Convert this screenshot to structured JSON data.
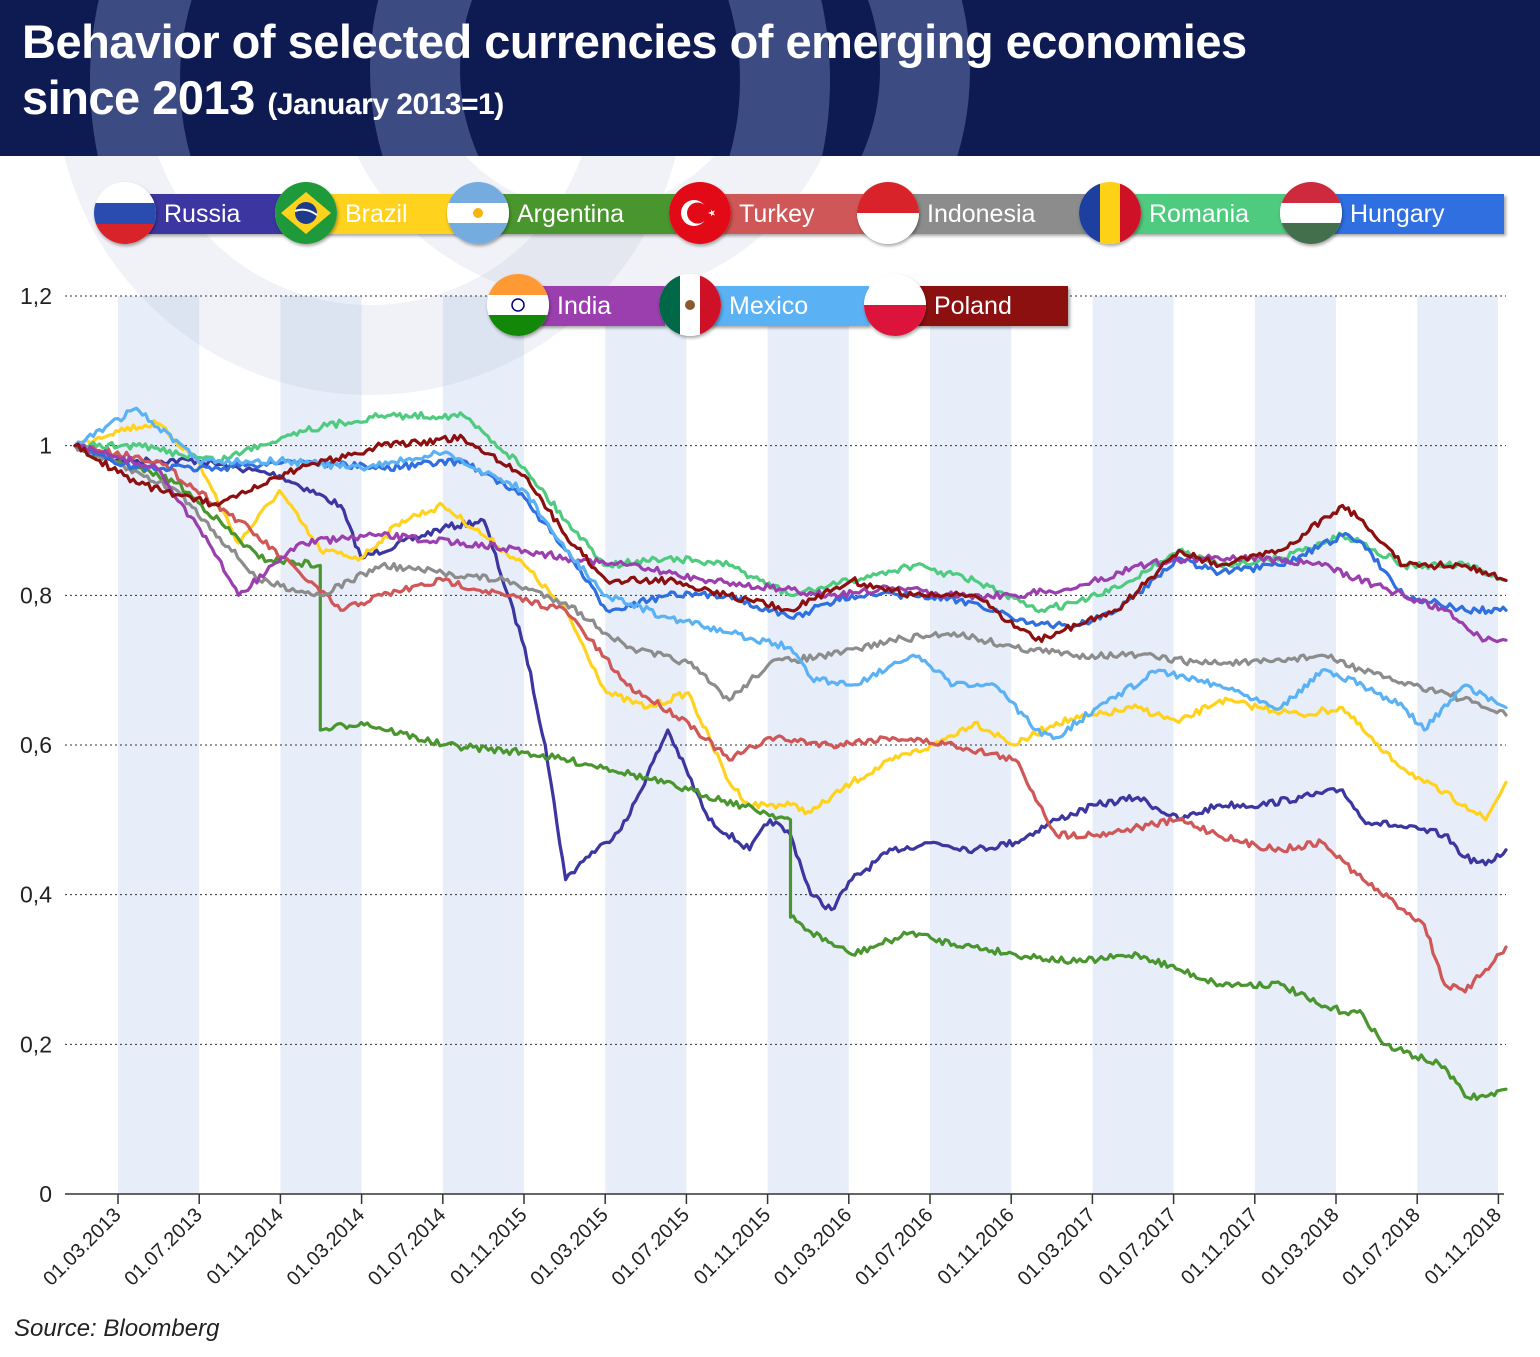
{
  "header": {
    "title_line1": "Behavior of selected currencies of emerging economies",
    "title_line2": "since 2013",
    "subtitle": "(January 2013=1)"
  },
  "legend": [
    {
      "name": "Russia",
      "color": "#3b36a0",
      "flag": "russia"
    },
    {
      "name": "Brazil",
      "color": "#ffd21e",
      "flag": "brazil"
    },
    {
      "name": "Argentina",
      "color": "#4a962e",
      "flag": "argentina"
    },
    {
      "name": "Turkey",
      "color": "#d05757",
      "flag": "turkey"
    },
    {
      "name": "Indonesia",
      "color": "#8c8c8c",
      "flag": "indonesia"
    },
    {
      "name": "Romania",
      "color": "#4fcb80",
      "flag": "romania"
    },
    {
      "name": "Hungary",
      "color": "#2f6fe0",
      "flag": "hungary"
    },
    {
      "name": "India",
      "color": "#9b3fae",
      "flag": "india"
    },
    {
      "name": "Mexico",
      "color": "#5ab2f5",
      "flag": "mexico"
    },
    {
      "name": "Poland",
      "color": "#8c1010",
      "flag": "poland"
    }
  ],
  "source": "Source: Bloomberg",
  "chart_data": {
    "type": "line",
    "title": "Behavior of selected currencies of emerging economies since 2013",
    "subtitle": "(January 2013=1)",
    "xlabel": "",
    "ylabel": "",
    "ylim": [
      0,
      1.2
    ],
    "yticks": [
      0,
      0.2,
      0.4,
      0.6,
      0.8,
      1,
      1.2
    ],
    "ytick_labels": [
      "0",
      "0,2",
      "0,4",
      "0,6",
      "0,8",
      "1",
      "1,2"
    ],
    "x_range": [
      "2013-01",
      "2018-11"
    ],
    "x_tick_labels": [
      "01.03.2013",
      "01.07.2013",
      "01.11.2014",
      "01.03.2014",
      "01.07.2014",
      "01.11.2015",
      "01.03.2015",
      "01.07.2015",
      "01.11.2015",
      "01.03.2016",
      "01.07.2016",
      "01.11.2016",
      "01.03.2017",
      "01.07.2017",
      "01.11.2017",
      "01.03.2018",
      "01.07.2018",
      "01.11.2018"
    ],
    "grid": "horizontal dotted",
    "shaded_bands": "alternating light blue 4-month bands",
    "legend_position": "top",
    "series": [
      {
        "name": "Russia",
        "color": "#3b36a0",
        "x": [
          "2013-01",
          "2013-03",
          "2013-07",
          "2013-11",
          "2014-02",
          "2014-03",
          "2014-07",
          "2014-09",
          "2014-11",
          "2014-12",
          "2015-01",
          "2015-02",
          "2015-03",
          "2015-04",
          "2015-06",
          "2015-08",
          "2015-10",
          "2015-11",
          "2015-12",
          "2016-01",
          "2016-02",
          "2016-03",
          "2016-05",
          "2016-07",
          "2016-09",
          "2016-11",
          "2017-01",
          "2017-03",
          "2017-05",
          "2017-07",
          "2017-09",
          "2017-11",
          "2018-01",
          "2018-03",
          "2018-04",
          "2018-06",
          "2018-08",
          "2018-09",
          "2018-10",
          "2018-11"
        ],
        "y": [
          1.0,
          0.98,
          0.98,
          0.96,
          0.92,
          0.85,
          0.89,
          0.9,
          0.73,
          0.6,
          0.42,
          0.45,
          0.47,
          0.5,
          0.62,
          0.5,
          0.46,
          0.5,
          0.48,
          0.4,
          0.38,
          0.42,
          0.46,
          0.47,
          0.46,
          0.47,
          0.5,
          0.52,
          0.53,
          0.5,
          0.52,
          0.52,
          0.53,
          0.54,
          0.5,
          0.49,
          0.48,
          0.45,
          0.44,
          0.46
        ]
      },
      {
        "name": "Brazil",
        "color": "#ffd21e",
        "x": [
          "2013-01",
          "2013-03",
          "2013-05",
          "2013-07",
          "2013-09",
          "2013-11",
          "2014-01",
          "2014-03",
          "2014-05",
          "2014-07",
          "2014-09",
          "2014-11",
          "2015-01",
          "2015-03",
          "2015-05",
          "2015-07",
          "2015-09",
          "2015-10",
          "2015-12",
          "2016-01",
          "2016-03",
          "2016-05",
          "2016-07",
          "2016-09",
          "2016-11",
          "2017-01",
          "2017-03",
          "2017-05",
          "2017-07",
          "2017-09",
          "2017-11",
          "2018-01",
          "2018-03",
          "2018-05",
          "2018-07",
          "2018-09",
          "2018-10",
          "2018-11"
        ],
        "y": [
          1.0,
          1.02,
          1.03,
          0.98,
          0.87,
          0.94,
          0.86,
          0.85,
          0.9,
          0.92,
          0.88,
          0.84,
          0.78,
          0.67,
          0.65,
          0.67,
          0.55,
          0.52,
          0.52,
          0.51,
          0.55,
          0.58,
          0.6,
          0.63,
          0.6,
          0.63,
          0.64,
          0.65,
          0.63,
          0.66,
          0.65,
          0.64,
          0.65,
          0.59,
          0.55,
          0.52,
          0.5,
          0.55
        ]
      },
      {
        "name": "Argentina",
        "color": "#4a962e",
        "x": [
          "2013-01",
          "2013-06",
          "2013-10",
          "2014-01",
          "2014-01",
          "2014-03",
          "2014-07",
          "2014-11",
          "2015-03",
          "2015-07",
          "2015-12",
          "2015-12",
          "2016-01",
          "2016-03",
          "2016-06",
          "2016-07",
          "2016-09",
          "2016-11",
          "2017-02",
          "2017-05",
          "2017-07",
          "2017-09",
          "2017-12",
          "2018-02",
          "2018-04",
          "2018-05",
          "2018-07",
          "2018-08",
          "2018-09",
          "2018-10",
          "2018-11"
        ],
        "y": [
          1.0,
          0.95,
          0.85,
          0.84,
          0.62,
          0.63,
          0.6,
          0.59,
          0.57,
          0.54,
          0.5,
          0.37,
          0.35,
          0.32,
          0.35,
          0.34,
          0.33,
          0.32,
          0.31,
          0.32,
          0.3,
          0.28,
          0.28,
          0.25,
          0.24,
          0.2,
          0.18,
          0.17,
          0.13,
          0.13,
          0.14
        ]
      },
      {
        "name": "Turkey",
        "color": "#d05757",
        "x": [
          "2013-01",
          "2013-05",
          "2013-09",
          "2013-12",
          "2014-02",
          "2014-04",
          "2014-07",
          "2014-10",
          "2015-01",
          "2015-04",
          "2015-07",
          "2015-09",
          "2015-11",
          "2016-02",
          "2016-05",
          "2016-08",
          "2016-11",
          "2017-01",
          "2017-03",
          "2017-07",
          "2017-10",
          "2017-12",
          "2018-02",
          "2018-04",
          "2018-06",
          "2018-07",
          "2018-08",
          "2018-09",
          "2018-10",
          "2018-11"
        ],
        "y": [
          1.0,
          0.98,
          0.9,
          0.83,
          0.78,
          0.8,
          0.82,
          0.8,
          0.78,
          0.68,
          0.63,
          0.58,
          0.61,
          0.6,
          0.61,
          0.6,
          0.58,
          0.48,
          0.48,
          0.5,
          0.47,
          0.46,
          0.47,
          0.42,
          0.38,
          0.36,
          0.28,
          0.27,
          0.3,
          0.33
        ]
      },
      {
        "name": "Indonesia",
        "color": "#8c8c8c",
        "x": [
          "2013-01",
          "2013-06",
          "2013-10",
          "2014-01",
          "2014-04",
          "2014-07",
          "2014-10",
          "2015-01",
          "2015-04",
          "2015-07",
          "2015-09",
          "2015-11",
          "2016-02",
          "2016-05",
          "2016-08",
          "2016-11",
          "2017-02",
          "2017-05",
          "2017-08",
          "2017-11",
          "2018-02",
          "2018-05",
          "2018-08",
          "2018-11"
        ],
        "y": [
          1.0,
          0.94,
          0.82,
          0.8,
          0.84,
          0.83,
          0.82,
          0.79,
          0.73,
          0.71,
          0.66,
          0.71,
          0.72,
          0.74,
          0.75,
          0.73,
          0.72,
          0.72,
          0.71,
          0.71,
          0.72,
          0.69,
          0.67,
          0.64
        ]
      },
      {
        "name": "Romania",
        "color": "#4fcb80",
        "x": [
          "2013-01",
          "2013-04",
          "2013-08",
          "2013-12",
          "2014-04",
          "2014-08",
          "2014-11",
          "2015-01",
          "2015-03",
          "2015-06",
          "2015-09",
          "2015-12",
          "2016-03",
          "2016-06",
          "2016-09",
          "2016-12",
          "2017-02",
          "2017-04",
          "2017-07",
          "2017-09",
          "2017-12",
          "2018-03",
          "2018-04",
          "2018-06",
          "2018-09",
          "2018-11"
        ],
        "y": [
          1.0,
          1.0,
          0.98,
          1.02,
          1.04,
          1.04,
          0.97,
          0.9,
          0.84,
          0.85,
          0.84,
          0.8,
          0.82,
          0.84,
          0.82,
          0.78,
          0.79,
          0.81,
          0.86,
          0.84,
          0.85,
          0.88,
          0.87,
          0.84,
          0.84,
          0.82
        ]
      },
      {
        "name": "Hungary",
        "color": "#2f6fe0",
        "x": [
          "2013-01",
          "2013-04",
          "2013-08",
          "2013-12",
          "2014-04",
          "2014-08",
          "2014-11",
          "2015-01",
          "2015-03",
          "2015-06",
          "2015-09",
          "2015-12",
          "2016-03",
          "2016-06",
          "2016-09",
          "2016-12",
          "2017-02",
          "2017-04",
          "2017-07",
          "2017-09",
          "2017-12",
          "2018-03",
          "2018-04",
          "2018-06",
          "2018-09",
          "2018-11"
        ],
        "y": [
          1.0,
          0.97,
          0.97,
          0.98,
          0.97,
          0.98,
          0.93,
          0.86,
          0.78,
          0.8,
          0.8,
          0.77,
          0.8,
          0.8,
          0.79,
          0.76,
          0.76,
          0.78,
          0.85,
          0.83,
          0.84,
          0.88,
          0.87,
          0.8,
          0.78,
          0.78
        ]
      },
      {
        "name": "India",
        "color": "#9b3fae",
        "x": [
          "2013-01",
          "2013-05",
          "2013-08",
          "2013-09",
          "2013-12",
          "2014-04",
          "2014-08",
          "2014-11",
          "2015-01",
          "2015-04",
          "2015-08",
          "2015-11",
          "2016-02",
          "2016-05",
          "2016-08",
          "2016-11",
          "2017-02",
          "2017-05",
          "2017-08",
          "2017-11",
          "2018-02",
          "2018-05",
          "2018-08",
          "2018-10",
          "2018-11"
        ],
        "y": [
          1.0,
          0.97,
          0.85,
          0.8,
          0.87,
          0.88,
          0.87,
          0.86,
          0.85,
          0.84,
          0.82,
          0.81,
          0.8,
          0.81,
          0.8,
          0.8,
          0.81,
          0.84,
          0.85,
          0.85,
          0.84,
          0.81,
          0.78,
          0.74,
          0.74
        ]
      },
      {
        "name": "Mexico",
        "color": "#5ab2f5",
        "x": [
          "2013-01",
          "2013-04",
          "2013-07",
          "2013-11",
          "2014-03",
          "2014-07",
          "2014-11",
          "2015-01",
          "2015-03",
          "2015-06",
          "2015-09",
          "2015-12",
          "2016-01",
          "2016-03",
          "2016-06",
          "2016-08",
          "2016-10",
          "2016-12",
          "2017-01",
          "2017-03",
          "2017-06",
          "2017-09",
          "2017-12",
          "2018-02",
          "2018-04",
          "2018-06",
          "2018-07",
          "2018-09",
          "2018-11"
        ],
        "y": [
          1.0,
          1.05,
          0.98,
          0.98,
          0.97,
          0.99,
          0.94,
          0.86,
          0.8,
          0.77,
          0.75,
          0.73,
          0.69,
          0.68,
          0.72,
          0.68,
          0.68,
          0.62,
          0.61,
          0.65,
          0.7,
          0.68,
          0.65,
          0.7,
          0.68,
          0.65,
          0.62,
          0.68,
          0.65
        ]
      },
      {
        "name": "Poland",
        "color": "#8c1010",
        "x": [
          "2013-01",
          "2013-04",
          "2013-08",
          "2013-12",
          "2014-04",
          "2014-08",
          "2014-11",
          "2015-01",
          "2015-03",
          "2015-06",
          "2015-09",
          "2015-12",
          "2016-03",
          "2016-06",
          "2016-09",
          "2016-12",
          "2017-02",
          "2017-04",
          "2017-07",
          "2017-09",
          "2017-12",
          "2018-03",
          "2018-04",
          "2018-06",
          "2018-09",
          "2018-11"
        ],
        "y": [
          1.0,
          0.95,
          0.92,
          0.97,
          1.0,
          1.01,
          0.96,
          0.88,
          0.82,
          0.82,
          0.8,
          0.78,
          0.82,
          0.8,
          0.8,
          0.74,
          0.76,
          0.78,
          0.86,
          0.84,
          0.86,
          0.92,
          0.9,
          0.84,
          0.84,
          0.82
        ]
      }
    ]
  }
}
